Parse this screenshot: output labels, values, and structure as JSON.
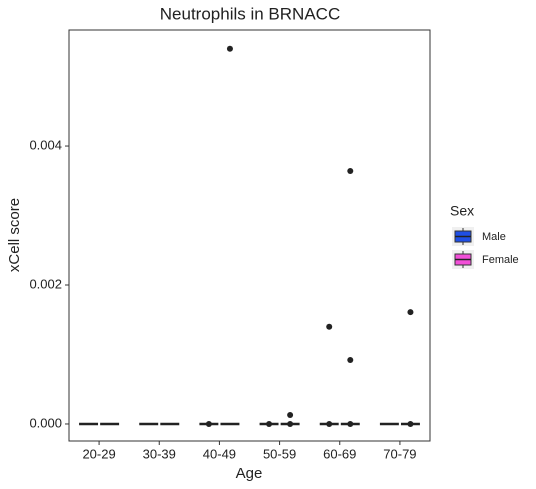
{
  "chart_data": {
    "type": "boxplot",
    "title": "Neutrophils in BRNACC",
    "x_label": "Age",
    "y_label": "xCell score",
    "categories": [
      "20-29",
      "30-39",
      "40-49",
      "50-59",
      "60-69",
      "70-79"
    ],
    "series": [
      {
        "name": "Male",
        "color": "#1f4fe6",
        "q1": [
          0,
          0,
          0,
          0,
          0,
          0
        ],
        "median": [
          0,
          0,
          0,
          0,
          0,
          0
        ],
        "q3": [
          0,
          0,
          0,
          0,
          0,
          0
        ],
        "low": [
          0,
          0,
          0,
          0,
          0,
          0
        ],
        "high": [
          0,
          0,
          0,
          0,
          0,
          0
        ],
        "outliers": [
          [],
          [],
          [
            0
          ],
          [
            0
          ],
          [
            0,
            0.0014
          ],
          []
        ]
      },
      {
        "name": "Female",
        "color": "#f24fd8",
        "q1": [
          0,
          0,
          0,
          0,
          0,
          0
        ],
        "median": [
          0,
          0,
          0,
          0,
          0,
          0
        ],
        "q3": [
          0,
          0,
          0,
          0,
          0,
          0
        ],
        "low": [
          0,
          0,
          0,
          0,
          0,
          0
        ],
        "high": [
          0,
          0,
          0,
          0,
          0,
          0
        ],
        "outliers": [
          [],
          [],
          [
            0.0054
          ],
          [
            0.00013,
            0
          ],
          [
            0.00364,
            0.00092,
            0
          ],
          [
            0.00161,
            0
          ]
        ]
      }
    ],
    "legend_title": "Sex",
    "ylim": [
      -0.000245,
      0.00567
    ],
    "yticks": [
      {
        "value": 0,
        "label": "0.000"
      },
      {
        "value": 0.002,
        "label": "0.002"
      },
      {
        "value": 0.004,
        "label": "0.004"
      }
    ],
    "grid": false
  }
}
